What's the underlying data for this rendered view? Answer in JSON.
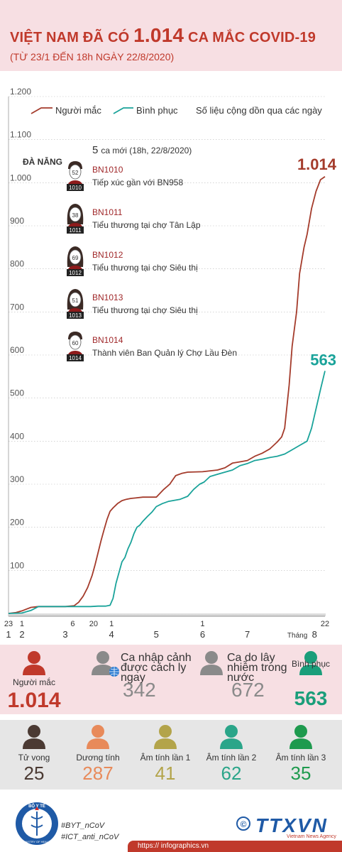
{
  "header": {
    "title_a": "VIỆT NAM ĐÃ CÓ",
    "title_num": "1.014",
    "title_b": "CA MẮC COVID-19",
    "subtitle": "(TỪ 23/1 ĐẾN 18h NGÀY 22/8/2020)"
  },
  "legend": {
    "cases": "Người mắc",
    "recovered": "Bình phục",
    "note": "Số liệu cộng dồn qua các ngày"
  },
  "colors": {
    "cases": "#a43b2b",
    "recovered": "#1aa39a",
    "accent": "#c0392b",
    "pink_bg": "#f7dfe3"
  },
  "end_labels": {
    "cases": "1.014",
    "recovered": "563"
  },
  "annotations": {
    "region": "ĐÀ NẴNG",
    "new_cases_num": "5",
    "new_cases_text": "ca mới (18h, 22/8/2020)",
    "patients": [
      {
        "id": "BN1010",
        "badge": "1010",
        "age": "52",
        "desc": "Tiếp xúc gần với BN958",
        "gender": "male"
      },
      {
        "id": "BN1011",
        "badge": "1011",
        "age": "38",
        "desc": "Tiểu thương tại chợ Tân Lập",
        "gender": "female"
      },
      {
        "id": "BN1012",
        "badge": "1012",
        "age": "69",
        "desc": "Tiểu thương tại chợ Siêu thị",
        "gender": "female"
      },
      {
        "id": "BN1013",
        "badge": "1013",
        "age": "51",
        "desc": "Tiểu thương tại chợ Siêu thị",
        "gender": "female"
      },
      {
        "id": "BN1014",
        "badge": "1014",
        "age": "60",
        "desc": "Thành viên Ban Quản lý Chợ Lầu Đèn",
        "gender": "male"
      }
    ]
  },
  "chart_data": {
    "type": "line",
    "ylim": [
      0,
      1200
    ],
    "y_ticks": [
      "100",
      "200",
      "300",
      "400",
      "500",
      "600",
      "700",
      "800",
      "900",
      "1.000",
      "1.100",
      "1.200"
    ],
    "x_day_ticks": [
      {
        "label": "23",
        "t": 0
      },
      {
        "label": "1",
        "t": 9
      },
      {
        "label": "6",
        "t": 43
      },
      {
        "label": "20",
        "t": 57
      },
      {
        "label": "1",
        "t": 69
      },
      {
        "label": "1",
        "t": 130
      },
      {
        "label": "22",
        "t": 212
      }
    ],
    "x_month_ticks": [
      {
        "label": "1",
        "t": 0
      },
      {
        "label": "2",
        "t": 9
      },
      {
        "label": "3",
        "t": 38
      },
      {
        "label": "4",
        "t": 69
      },
      {
        "label": "5",
        "t": 99
      },
      {
        "label": "6",
        "t": 130
      },
      {
        "label": "7",
        "t": 160
      },
      {
        "label": "8",
        "t": 205
      }
    ],
    "x_axis_word": "Tháng",
    "series": [
      {
        "name": "Người mắc",
        "points": [
          [
            0,
            0
          ],
          [
            5,
            2
          ],
          [
            9,
            6
          ],
          [
            12,
            10
          ],
          [
            15,
            14
          ],
          [
            20,
            16
          ],
          [
            30,
            16
          ],
          [
            38,
            16
          ],
          [
            44,
            18
          ],
          [
            47,
            26
          ],
          [
            50,
            40
          ],
          [
            53,
            60
          ],
          [
            56,
            88
          ],
          [
            58,
            113
          ],
          [
            60,
            141
          ],
          [
            62,
            169
          ],
          [
            64,
            194
          ],
          [
            66,
            218
          ],
          [
            68,
            237
          ],
          [
            70,
            245
          ],
          [
            73,
            255
          ],
          [
            76,
            262
          ],
          [
            79,
            265
          ],
          [
            82,
            267
          ],
          [
            85,
            268
          ],
          [
            90,
            270
          ],
          [
            95,
            270
          ],
          [
            99,
            270
          ],
          [
            104,
            288
          ],
          [
            108,
            300
          ],
          [
            112,
            320
          ],
          [
            116,
            325
          ],
          [
            120,
            328
          ],
          [
            130,
            329
          ],
          [
            140,
            333
          ],
          [
            145,
            338
          ],
          [
            150,
            349
          ],
          [
            155,
            352
          ],
          [
            160,
            355
          ],
          [
            165,
            365
          ],
          [
            170,
            372
          ],
          [
            175,
            382
          ],
          [
            180,
            398
          ],
          [
            183,
            410
          ],
          [
            185,
            430
          ],
          [
            188,
            530
          ],
          [
            190,
            620
          ],
          [
            193,
            700
          ],
          [
            195,
            789
          ],
          [
            198,
            850
          ],
          [
            200,
            880
          ],
          [
            203,
            940
          ],
          [
            206,
            980
          ],
          [
            209,
            1007
          ],
          [
            212,
            1014
          ]
        ]
      },
      {
        "name": "Bình phục",
        "points": [
          [
            0,
            0
          ],
          [
            9,
            1
          ],
          [
            15,
            7
          ],
          [
            20,
            16
          ],
          [
            38,
            16
          ],
          [
            44,
            16
          ],
          [
            55,
            16
          ],
          [
            60,
            17
          ],
          [
            65,
            17
          ],
          [
            68,
            19
          ],
          [
            70,
            35
          ],
          [
            72,
            70
          ],
          [
            74,
            95
          ],
          [
            76,
            120
          ],
          [
            78,
            130
          ],
          [
            80,
            150
          ],
          [
            82,
            165
          ],
          [
            84,
            185
          ],
          [
            86,
            200
          ],
          [
            88,
            205
          ],
          [
            90,
            214
          ],
          [
            93,
            225
          ],
          [
            96,
            235
          ],
          [
            99,
            248
          ],
          [
            103,
            255
          ],
          [
            107,
            260
          ],
          [
            110,
            262
          ],
          [
            115,
            265
          ],
          [
            120,
            272
          ],
          [
            124,
            288
          ],
          [
            128,
            300
          ],
          [
            131,
            305
          ],
          [
            135,
            318
          ],
          [
            140,
            323
          ],
          [
            145,
            328
          ],
          [
            150,
            333
          ],
          [
            155,
            343
          ],
          [
            160,
            348
          ],
          [
            165,
            355
          ],
          [
            170,
            358
          ],
          [
            175,
            362
          ],
          [
            180,
            365
          ],
          [
            185,
            370
          ],
          [
            190,
            380
          ],
          [
            195,
            390
          ],
          [
            200,
            400
          ],
          [
            203,
            430
          ],
          [
            206,
            475
          ],
          [
            209,
            520
          ],
          [
            212,
            563
          ]
        ]
      }
    ]
  },
  "stats_row1": [
    {
      "label": "Người mắc",
      "value": "1.014",
      "color": "#c0392b",
      "icon_color": "#c0392b"
    },
    {
      "label": "Ca nhập cảnh được cách ly ngay",
      "value": "342",
      "color": "#8a8a8a",
      "icon_color": "#8a8a8a"
    },
    {
      "label": "Ca do lây nhiễm trong nước",
      "value": "672",
      "color": "#8a8a8a",
      "icon_color": "#8a8a8a"
    },
    {
      "label": "Bình phục",
      "value": "563",
      "color": "#1a9e7a",
      "icon_color": "#1a9e7a"
    }
  ],
  "stats_row2": [
    {
      "label": "Tử vong",
      "value": "25",
      "color": "#4b3a33",
      "icon_color": "#4b3a33"
    },
    {
      "label": "Dương tính",
      "value": "287",
      "color": "#e88a5a",
      "icon_color": "#e88a5a"
    },
    {
      "label": "Âm tính lần 1",
      "value": "41",
      "color": "#b3a44a",
      "icon_color": "#b3a44a"
    },
    {
      "label": "Âm tính lần 2",
      "value": "62",
      "color": "#2aa589",
      "icon_color": "#2aa589"
    },
    {
      "label": "Âm tính lần 3",
      "value": "35",
      "color": "#1e9a4e",
      "icon_color": "#1e9a4e"
    }
  ],
  "footer": {
    "ministry": "BỘ Y TẾ",
    "ministry_ring": "MINISTRY OF HEALTH",
    "hashtag1": "#BYT_nCoV",
    "hashtag2": "#ICT_anti_nCoV",
    "copyright": "©",
    "agency": "TTXVN",
    "agency_sub": "Vietnam News Agency",
    "url": "https:// infographics.vn"
  }
}
